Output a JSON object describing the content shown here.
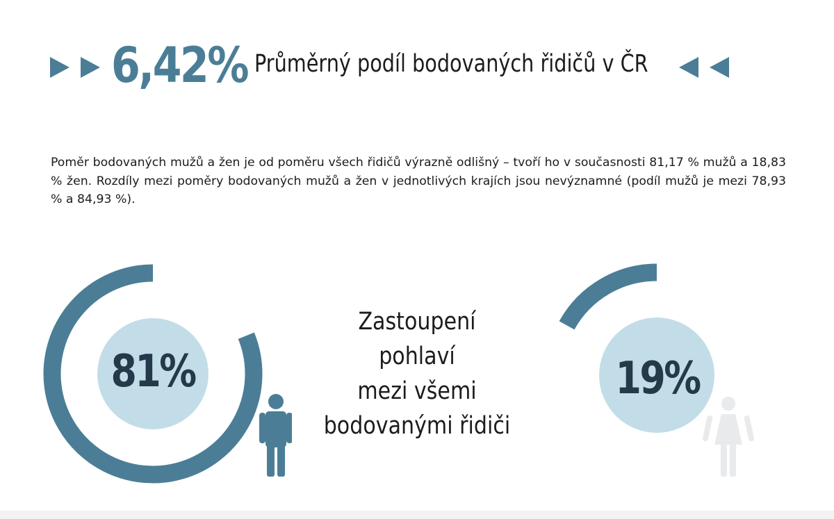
{
  "header": {
    "percentage": "6,42%",
    "title": "Průměrný podíl bodovaných řidičů v ČR"
  },
  "intro": {
    "text": "Poměr bodovaných mužů a žen je od poměru všech řidičů výrazně odlišný – tvoří ho v současnosti 81,17 % mužů a 18,83 % žen. Rozdíly mezi poměry bodovaných mužů a žen v jednotlivých krajích jsou nevýznamné (podíl mužů je mezi 78,93 % a 84,93 %)."
  },
  "gender": {
    "title_line1": "Zastoupení pohlaví",
    "title_line2": "mezi všemi",
    "title_line3": "bodovanými řidiči",
    "men_label": "81%",
    "women_label": "19%"
  },
  "colors": {
    "accent": "#4b7e96",
    "circle_fill": "#c3dde8",
    "text_dark": "#24394a",
    "female_icon": "#e8eaec"
  },
  "chart_data": {
    "type": "pie",
    "categories": [
      "muži",
      "ženy"
    ],
    "values": [
      81.17,
      18.83
    ]
  }
}
